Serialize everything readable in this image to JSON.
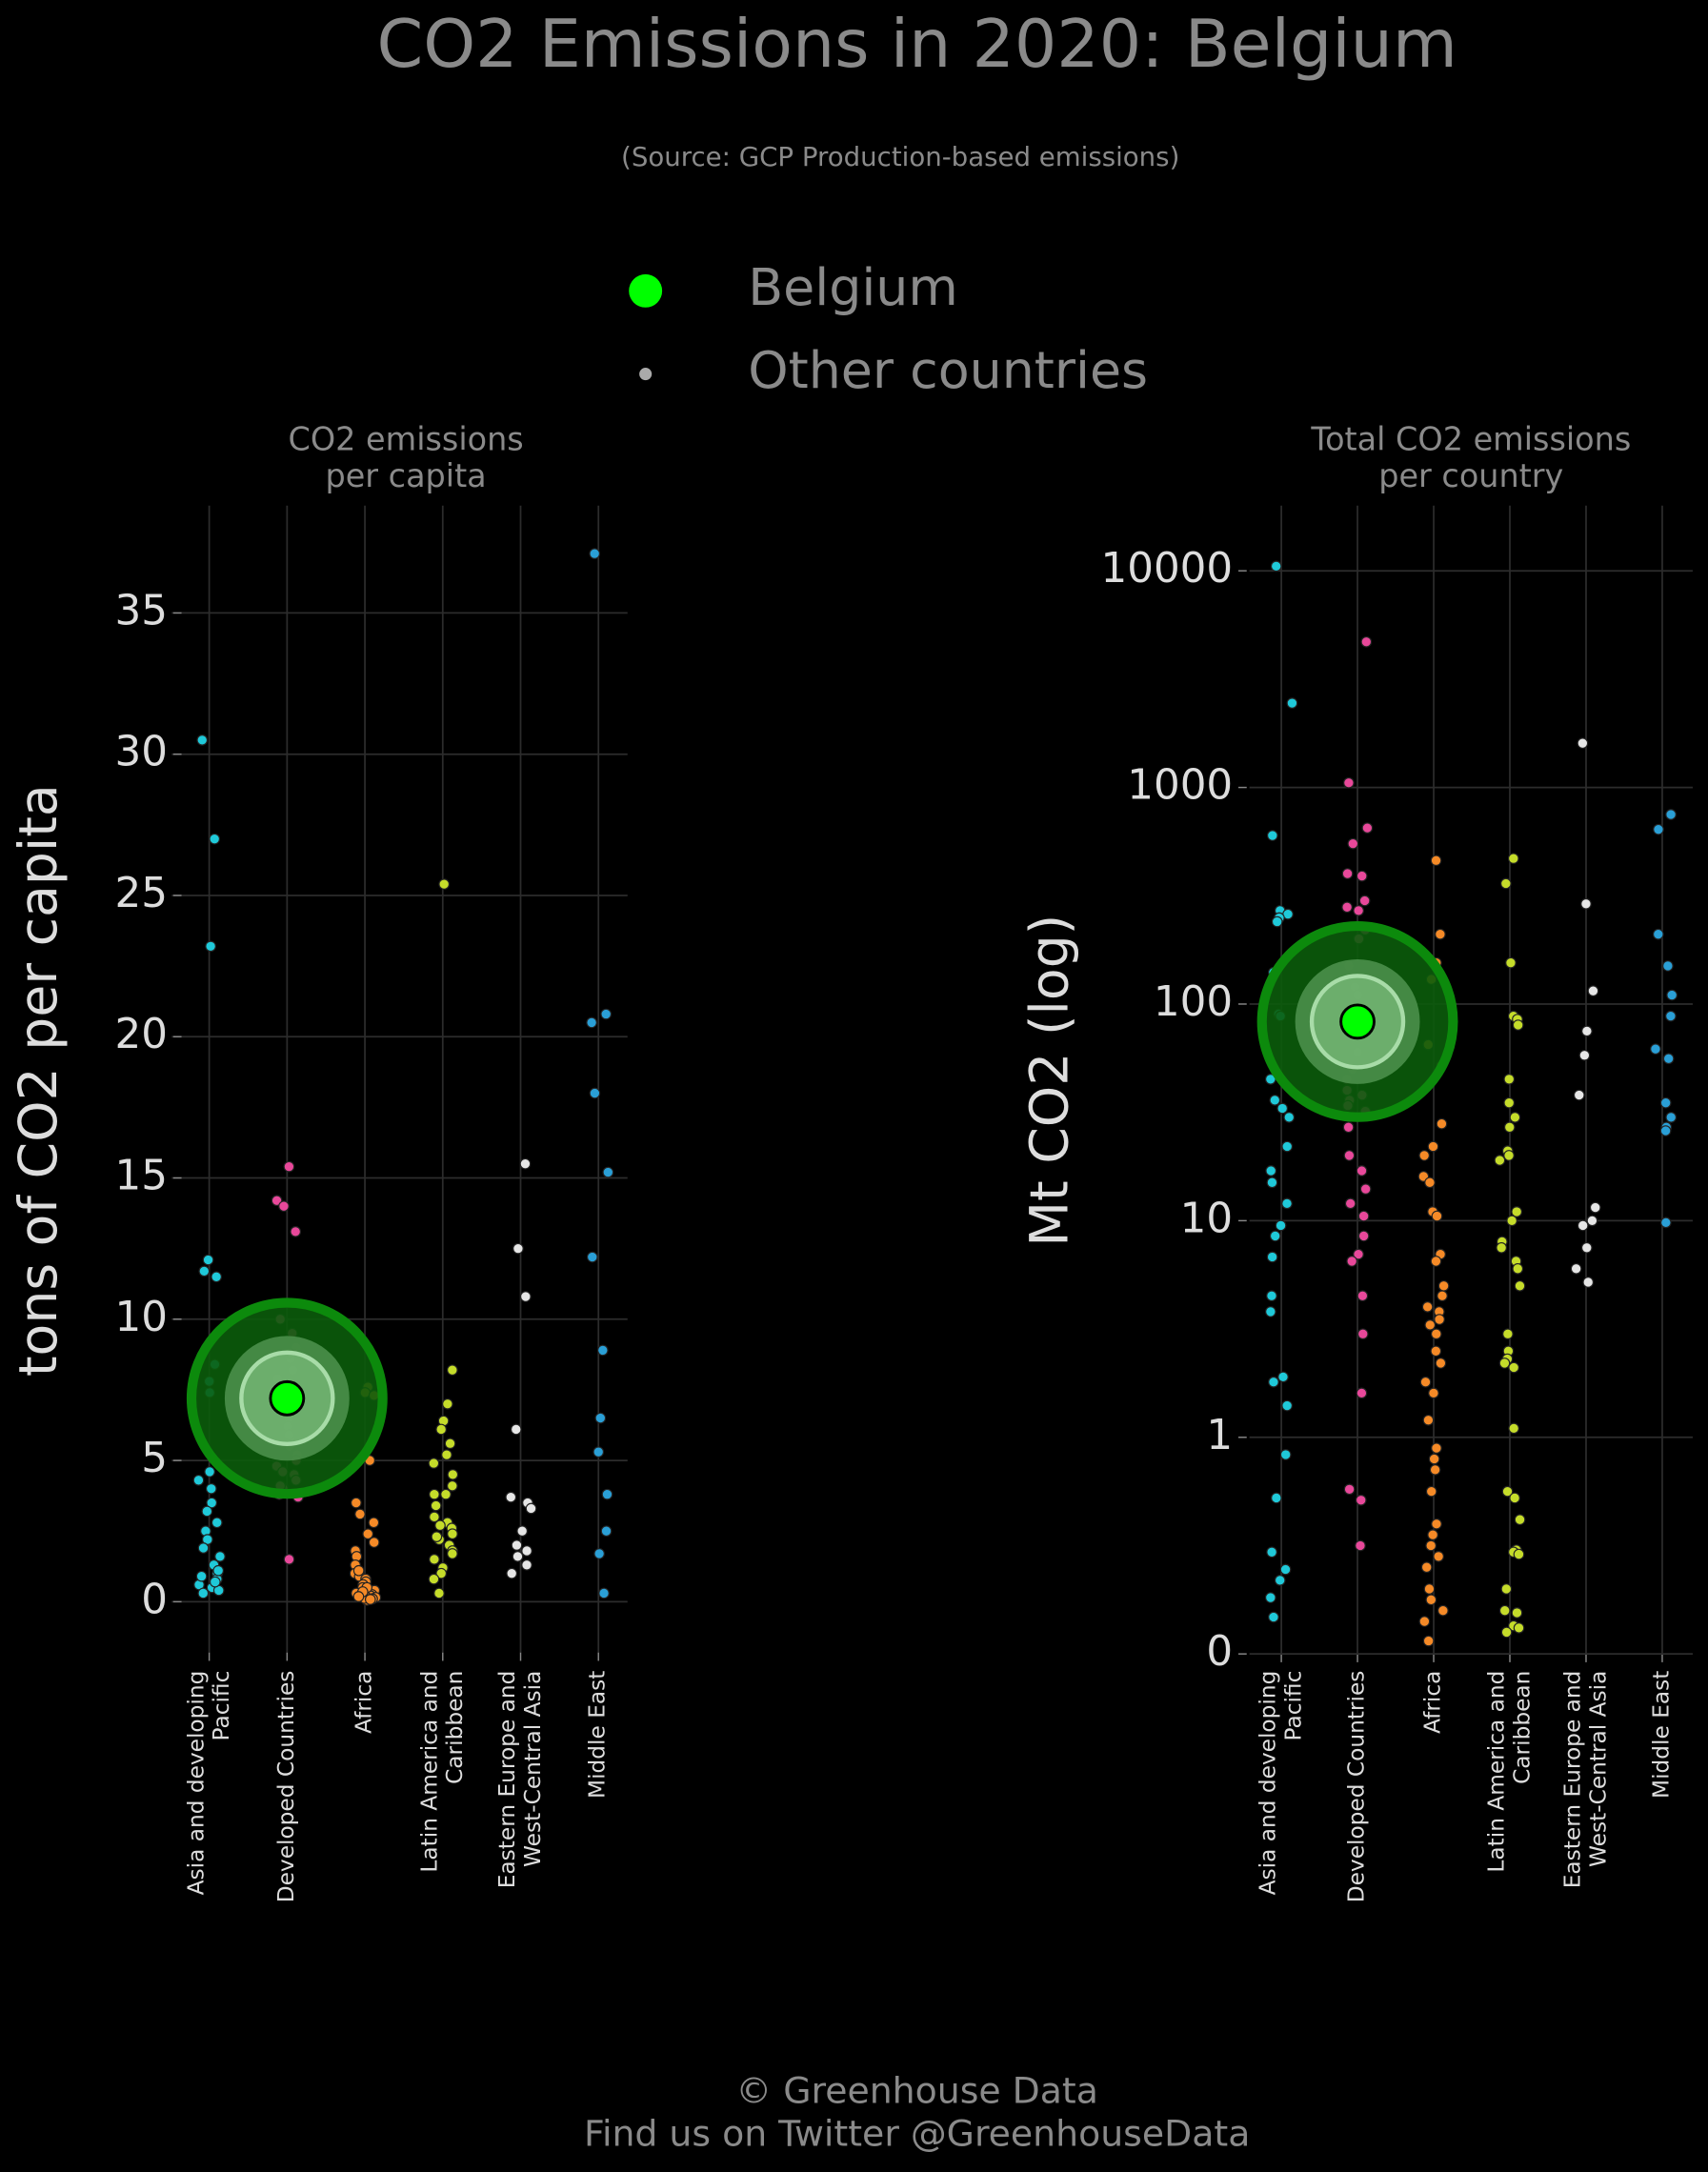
{
  "title": "CO2 Emissions in 2020: Belgium",
  "subtitle": "(Source: GCP Production-based emissions)",
  "legend": [
    {
      "name": "Belgium",
      "color": "#00ff00"
    },
    {
      "name": "Other countries",
      "color": "#aaaaaa"
    }
  ],
  "footer": [
    "© Greenhouse Data",
    "Find us on Twitter @GreenhouseData"
  ],
  "chart_data": [
    {
      "type": "strip",
      "title": "CO2 emissions\nper capita",
      "ylabel": "tons of CO2 per capita",
      "yscale": "linear",
      "ylim": [
        -1.8,
        38.8
      ],
      "yticks": [
        0,
        5,
        10,
        15,
        20,
        25,
        30,
        35
      ],
      "grid": true,
      "categories": [
        "Asia and developing\nPacific",
        "Developed Countries",
        "Africa",
        "Latin America and\nCaribbean",
        "Eastern Europe and\nWest-Central Asia",
        "Middle East"
      ],
      "colors": [
        "#1fc9d9",
        "#e8489a",
        "#f58a27",
        "#c5dc2a",
        "#e6e6e6",
        "#2a9fd6"
      ],
      "values": [
        [
          30.5,
          27.0,
          23.2,
          12.1,
          11.7,
          11.5,
          8.4,
          7.8,
          7.4,
          4.6,
          4.3,
          4.0,
          3.5,
          3.2,
          2.8,
          2.5,
          2.2,
          1.9,
          1.6,
          1.3,
          1.0,
          0.8,
          0.6,
          0.5,
          0.4,
          0.3,
          0.7,
          0.9,
          1.1
        ],
        [
          15.4,
          14.2,
          14.0,
          13.1,
          10.0,
          9.0,
          8.6,
          8.2,
          7.9,
          7.5,
          7.0,
          6.5,
          6.2,
          5.8,
          5.5,
          5.2,
          5.0,
          4.8,
          4.5,
          4.3,
          4.0,
          3.8,
          3.7,
          1.5,
          9.5,
          8.8,
          6.8,
          5.9,
          4.6,
          4.1
        ],
        [
          7.6,
          7.4,
          7.3,
          5.0,
          3.5,
          3.1,
          2.8,
          2.4,
          2.1,
          1.8,
          1.6,
          1.3,
          1.0,
          0.9,
          0.8,
          0.7,
          0.6,
          0.5,
          0.4,
          0.3,
          0.25,
          0.2,
          0.15,
          0.1,
          0.1,
          0.05,
          0.3,
          0.2,
          0.12,
          0.08,
          1.1,
          0.5,
          0.35,
          0.18
        ],
        [
          25.4,
          8.2,
          7.0,
          6.4,
          6.1,
          5.6,
          5.2,
          4.9,
          4.5,
          4.1,
          3.8,
          3.8,
          3.4,
          3.0,
          2.8,
          2.6,
          2.4,
          2.2,
          2.0,
          1.8,
          1.5,
          1.2,
          1.0,
          0.8,
          0.3,
          2.7,
          2.3,
          1.7
        ],
        [
          15.5,
          12.5,
          10.8,
          6.1,
          3.7,
          3.5,
          3.3,
          2.5,
          2.0,
          1.8,
          1.6,
          1.3,
          1.0
        ],
        [
          37.1,
          20.8,
          20.5,
          18.0,
          15.2,
          12.2,
          8.9,
          6.5,
          5.3,
          3.8,
          2.5,
          1.7,
          0.3
        ]
      ],
      "highlight": {
        "name": "Belgium",
        "category": "Developed Countries",
        "value": 7.2
      }
    },
    {
      "type": "strip",
      "title": "Total CO2 emissions\nper country",
      "ylabel": "Mt CO2 (log)",
      "yscale": "symlog",
      "ylim": [
        0,
        20000
      ],
      "yticks": [
        0,
        1,
        10,
        100,
        1000,
        10000
      ],
      "grid": true,
      "categories": [
        "Asia and developing\nPacific",
        "Developed Countries",
        "Africa",
        "Latin America and\nCaribbean",
        "Eastern Europe and\nWest-Central Asia",
        "Middle East"
      ],
      "colors": [
        "#1fc9d9",
        "#e8489a",
        "#f58a27",
        "#c5dc2a",
        "#e6e6e6",
        "#2a9fd6"
      ],
      "values": [
        [
          10500,
          2450,
          600,
          270,
          260,
          250,
          240,
          140,
          90,
          88,
          45,
          36,
          33,
          30,
          22,
          17,
          15,
          12,
          9.5,
          8.5,
          6.8,
          4.5,
          3.8,
          1.9,
          1.8,
          1.4,
          0.92,
          0.72,
          0.47,
          0.39,
          0.34,
          0.26,
          0.17
        ],
        [
          4700,
          1050,
          650,
          550,
          400,
          390,
          300,
          280,
          270,
          220,
          200,
          150,
          120,
          110,
          95,
          75,
          60,
          50,
          45,
          40,
          38,
          36,
          34,
          32,
          27,
          20,
          17,
          14,
          12,
          10.5,
          8.5,
          7,
          6.5,
          4.5,
          3,
          1.6,
          0.76,
          0.71,
          0.5
        ],
        [
          460,
          210,
          155,
          130,
          65,
          52,
          28,
          22,
          20,
          16,
          15,
          11,
          10.5,
          7,
          6.5,
          5,
          4.5,
          4,
          3.8,
          3.5,
          3.3,
          3,
          2.5,
          2.2,
          1.8,
          1.6,
          1.2,
          0.95,
          0.9,
          0.85,
          0.75,
          0.6,
          0.55,
          0.5,
          0.45,
          0.4,
          0.3,
          0.25,
          0.2,
          0.15,
          0.06
        ],
        [
          470,
          360,
          155,
          88,
          85,
          80,
          45,
          35,
          30,
          27,
          21,
          20,
          19,
          11,
          10,
          8,
          7.5,
          6.5,
          6,
          5,
          3,
          2.5,
          2.3,
          2.2,
          2.1,
          1.1,
          0.75,
          0.72,
          0.62,
          0.48,
          0.47,
          0.46,
          0.3,
          0.2,
          0.19,
          0.13,
          0.12,
          0.1
        ],
        [
          1600,
          290,
          115,
          75,
          58,
          38,
          11.5,
          10,
          9.5,
          7.5,
          6,
          5.2
        ],
        [
          750,
          640,
          210,
          150,
          110,
          88,
          62,
          56,
          35,
          30,
          27,
          26,
          9.8
        ]
      ],
      "highlight": {
        "name": "Belgium",
        "category": "Developed Countries",
        "value": 83
      }
    }
  ]
}
